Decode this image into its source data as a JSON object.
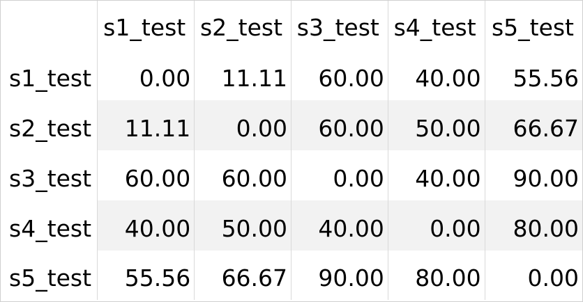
{
  "table": {
    "columns": [
      "s1_test",
      "s2_test",
      "s3_test",
      "s4_test",
      "s5_test"
    ],
    "rows": [
      {
        "label": "s1_test",
        "values": [
          "0.00",
          "11.11",
          "60.00",
          "40.00",
          "55.56"
        ]
      },
      {
        "label": "s2_test",
        "values": [
          "11.11",
          "0.00",
          "60.00",
          "50.00",
          "66.67"
        ]
      },
      {
        "label": "s3_test",
        "values": [
          "60.00",
          "60.00",
          "0.00",
          "40.00",
          "90.00"
        ]
      },
      {
        "label": "s4_test",
        "values": [
          "40.00",
          "50.00",
          "40.00",
          "0.00",
          "80.00"
        ]
      },
      {
        "label": "s5_test",
        "values": [
          "55.56",
          "66.67",
          "90.00",
          "80.00",
          "0.00"
        ]
      }
    ]
  }
}
